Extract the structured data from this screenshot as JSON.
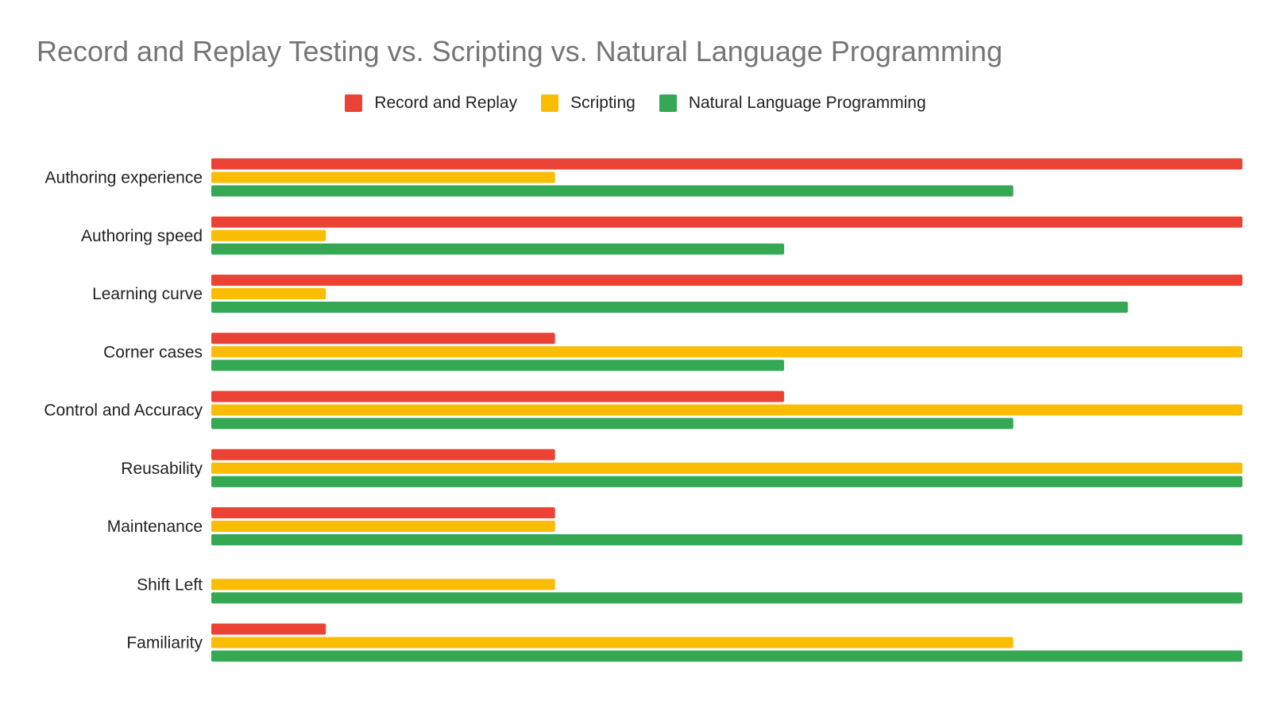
{
  "chart_data": {
    "type": "bar",
    "orientation": "horizontal",
    "title": "Record and Replay Testing vs. Scripting vs. Natural Language Programming",
    "categories": [
      "Authoring experience",
      "Authoring speed",
      "Learning curve",
      "Corner cases",
      "Control and Accuracy",
      "Reusability",
      "Maintenance",
      "Shift Left",
      "Familiarity"
    ],
    "series": [
      {
        "name": "Record and Replay",
        "color": "#ea4335",
        "values": [
          9,
          9,
          9,
          3,
          5,
          3,
          3,
          0,
          1
        ]
      },
      {
        "name": "Scripting",
        "color": "#fbbc04",
        "values": [
          3,
          1,
          1,
          9,
          9,
          9,
          3,
          3,
          7
        ]
      },
      {
        "name": "Natural Language Programming",
        "color": "#34a853",
        "values": [
          7,
          5,
          8,
          5,
          7,
          9,
          9,
          9,
          9
        ]
      }
    ],
    "xlim": [
      0,
      9
    ],
    "grid": false,
    "legend_position": "top-center",
    "xlabel": "",
    "ylabel": ""
  }
}
